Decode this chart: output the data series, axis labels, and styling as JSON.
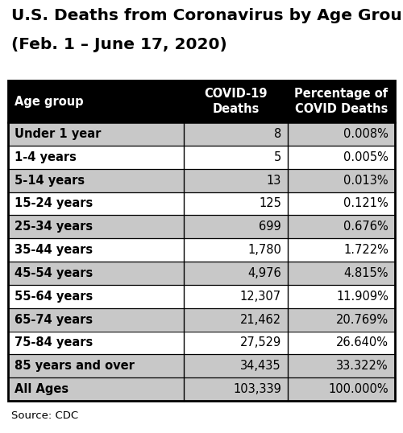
{
  "title_line1": "U.S. Deaths from Coronavirus by Age Group",
  "title_line2": "(Feb. 1 – June 17, 2020)",
  "source": "Source: CDC",
  "col_headers": [
    "Age group",
    "COVID-19\nDeaths",
    "Percentage of\nCOVID Deaths"
  ],
  "rows": [
    [
      "Under 1 year",
      "8",
      "0.008%"
    ],
    [
      "1-4 years",
      "5",
      "0.005%"
    ],
    [
      "5-14 years",
      "13",
      "0.013%"
    ],
    [
      "15-24 years",
      "125",
      "0.121%"
    ],
    [
      "25-34 years",
      "699",
      "0.676%"
    ],
    [
      "35-44 years",
      "1,780",
      "1.722%"
    ],
    [
      "45-54 years",
      "4,976",
      "4.815%"
    ],
    [
      "55-64 years",
      "12,307",
      "11.909%"
    ],
    [
      "65-74 years",
      "21,462",
      "20.769%"
    ],
    [
      "75-84 years",
      "27,529",
      "26.640%"
    ],
    [
      "85 years and over",
      "34,435",
      "33.322%"
    ],
    [
      "All Ages",
      "103,339",
      "100.000%"
    ]
  ],
  "header_bg": "#000000",
  "header_fg": "#ffffff",
  "row_bg_odd": "#c8c8c8",
  "row_bg_even": "#ffffff",
  "border_color": "#000000",
  "title_fontsize": 14.5,
  "header_fontsize": 10.5,
  "cell_fontsize": 10.5,
  "source_fontsize": 9.5,
  "fig_width": 5.0,
  "fig_height": 5.38,
  "dpi": 100
}
